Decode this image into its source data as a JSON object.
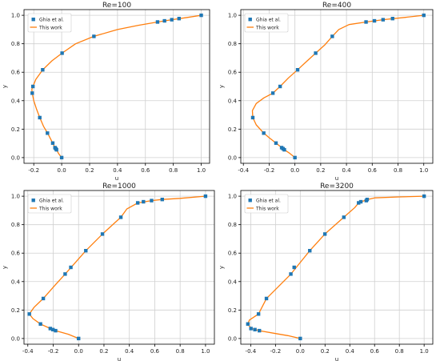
{
  "colors": {
    "ghia_marker": "#1f77b4",
    "this_work_line": "#ff7f0e",
    "grid": "#d0d0d0",
    "axes": "#000000"
  },
  "chart_data": [
    {
      "type": "line",
      "title": "Re=100",
      "xlabel": "u",
      "ylabel": "y",
      "xlim": [
        -0.27,
        1.06
      ],
      "ylim": [
        -0.04,
        1.04
      ],
      "xticks": [
        -0.2,
        0.0,
        0.2,
        0.4,
        0.6,
        0.8,
        1.0
      ],
      "yticks": [
        0.0,
        0.2,
        0.4,
        0.6,
        0.8,
        1.0
      ],
      "grid": true,
      "legend_position": "top-left",
      "series": [
        {
          "name": "Ghia et al.",
          "kind": "marker",
          "x": [
            0.0,
            -0.037,
            -0.042,
            -0.048,
            -0.064,
            -0.102,
            -0.157,
            -0.211,
            -0.206,
            -0.136,
            0.003,
            0.231,
            0.687,
            0.737,
            0.789,
            0.841,
            1.0
          ],
          "y": [
            0.0,
            0.055,
            0.0625,
            0.07,
            0.102,
            0.172,
            0.281,
            0.453,
            0.5,
            0.617,
            0.734,
            0.852,
            0.953,
            0.961,
            0.969,
            0.977,
            1.0
          ]
        },
        {
          "name": "This work",
          "kind": "line",
          "x": [
            0.0,
            -0.02,
            -0.037,
            -0.048,
            -0.064,
            -0.1,
            -0.13,
            -0.157,
            -0.18,
            -0.2,
            -0.211,
            -0.214,
            -0.206,
            -0.185,
            -0.136,
            -0.07,
            0.003,
            0.1,
            0.231,
            0.4,
            0.55,
            0.687,
            0.789,
            0.9,
            1.0
          ],
          "y": [
            0.0,
            0.025,
            0.055,
            0.07,
            0.102,
            0.17,
            0.22,
            0.281,
            0.34,
            0.4,
            0.453,
            0.48,
            0.5,
            0.55,
            0.617,
            0.68,
            0.734,
            0.8,
            0.852,
            0.9,
            0.93,
            0.953,
            0.969,
            0.985,
            1.0
          ]
        }
      ]
    },
    {
      "type": "line",
      "title": "Re=400",
      "xlabel": "u",
      "ylabel": "y",
      "xlim": [
        -0.42,
        1.07
      ],
      "ylim": [
        -0.04,
        1.04
      ],
      "xticks": [
        -0.4,
        -0.2,
        0.0,
        0.2,
        0.4,
        0.6,
        0.8,
        1.0
      ],
      "yticks": [
        0.0,
        0.2,
        0.4,
        0.6,
        0.8,
        1.0
      ],
      "grid": true,
      "legend_position": "top-left",
      "series": [
        {
          "name": "Ghia et al.",
          "kind": "marker",
          "x": [
            0.0,
            -0.082,
            -0.092,
            -0.103,
            -0.147,
            -0.242,
            -0.327,
            -0.171,
            -0.115,
            0.021,
            0.161,
            0.29,
            0.552,
            0.617,
            0.684,
            0.758,
            1.0
          ],
          "y": [
            0.0,
            0.055,
            0.0625,
            0.07,
            0.102,
            0.172,
            0.281,
            0.453,
            0.5,
            0.617,
            0.734,
            0.852,
            0.953,
            0.961,
            0.969,
            0.977,
            1.0
          ]
        },
        {
          "name": "This work",
          "kind": "line",
          "x": [
            0.0,
            -0.04,
            -0.082,
            -0.103,
            -0.147,
            -0.2,
            -0.242,
            -0.3,
            -0.327,
            -0.33,
            -0.3,
            -0.24,
            -0.171,
            -0.115,
            -0.05,
            0.021,
            0.09,
            0.161,
            0.23,
            0.29,
            0.34,
            0.42,
            0.552,
            0.684,
            0.85,
            1.0
          ],
          "y": [
            0.0,
            0.03,
            0.055,
            0.07,
            0.102,
            0.14,
            0.172,
            0.23,
            0.281,
            0.33,
            0.38,
            0.42,
            0.453,
            0.5,
            0.56,
            0.617,
            0.675,
            0.734,
            0.79,
            0.852,
            0.9,
            0.935,
            0.953,
            0.969,
            0.985,
            1.0
          ]
        }
      ]
    },
    {
      "type": "line",
      "title": "Re=1000",
      "xlabel": "u",
      "ylabel": "y",
      "xlim": [
        -0.43,
        1.07
      ],
      "ylim": [
        -0.04,
        1.04
      ],
      "xticks": [
        -0.4,
        -0.2,
        0.0,
        0.2,
        0.4,
        0.6,
        0.8,
        1.0
      ],
      "yticks": [
        0.0,
        0.2,
        0.4,
        0.6,
        0.8,
        1.0
      ],
      "grid": true,
      "legend_position": "top-left",
      "series": [
        {
          "name": "Ghia et al.",
          "kind": "marker",
          "x": [
            0.0,
            -0.181,
            -0.202,
            -0.223,
            -0.3,
            -0.388,
            -0.278,
            -0.106,
            -0.061,
            0.057,
            0.188,
            0.333,
            0.466,
            0.511,
            0.575,
            0.659,
            1.0
          ],
          "y": [
            0.0,
            0.055,
            0.0625,
            0.07,
            0.102,
            0.172,
            0.281,
            0.453,
            0.5,
            0.617,
            0.734,
            0.852,
            0.953,
            0.961,
            0.969,
            0.977,
            1.0
          ]
        },
        {
          "name": "This work",
          "kind": "line",
          "x": [
            0.0,
            -0.08,
            -0.181,
            -0.223,
            -0.3,
            -0.36,
            -0.388,
            -0.35,
            -0.278,
            -0.19,
            -0.106,
            0.057,
            0.188,
            0.333,
            0.38,
            0.466,
            0.575,
            0.659,
            0.8,
            1.0
          ],
          "y": [
            0.0,
            0.03,
            0.055,
            0.07,
            0.102,
            0.14,
            0.172,
            0.22,
            0.281,
            0.37,
            0.453,
            0.617,
            0.734,
            0.852,
            0.91,
            0.953,
            0.969,
            0.977,
            0.985,
            1.0
          ]
        }
      ]
    },
    {
      "type": "line",
      "title": "Re=3200",
      "xlabel": "u",
      "ylabel": "y",
      "xlim": [
        -0.48,
        1.07
      ],
      "ylim": [
        -0.04,
        1.04
      ],
      "xticks": [
        -0.4,
        -0.2,
        0.0,
        0.2,
        0.4,
        0.6,
        0.8,
        1.0
      ],
      "yticks": [
        0.0,
        0.2,
        0.4,
        0.6,
        0.8,
        1.0
      ],
      "grid": true,
      "legend_position": "top-left",
      "series": [
        {
          "name": "Ghia et al.",
          "kind": "marker",
          "x": [
            0.0,
            -0.33,
            -0.366,
            -0.398,
            -0.423,
            -0.337,
            -0.273,
            -0.076,
            -0.049,
            0.077,
            0.199,
            0.352,
            0.471,
            0.489,
            0.533,
            0.54,
            1.0
          ],
          "y": [
            0.0,
            0.055,
            0.0625,
            0.07,
            0.102,
            0.172,
            0.281,
            0.453,
            0.5,
            0.617,
            0.734,
            0.852,
            0.953,
            0.961,
            0.969,
            0.977,
            1.0
          ]
        },
        {
          "name": "This work",
          "kind": "line",
          "x": [
            0.0,
            -0.1,
            -0.2,
            -0.33,
            -0.398,
            -0.423,
            -0.41,
            -0.337,
            -0.273,
            -0.17,
            -0.076,
            0.077,
            0.199,
            0.352,
            0.44,
            0.471,
            0.533,
            0.6,
            0.8,
            1.0
          ],
          "y": [
            0.0,
            0.02,
            0.035,
            0.055,
            0.07,
            0.102,
            0.13,
            0.172,
            0.281,
            0.37,
            0.453,
            0.617,
            0.734,
            0.852,
            0.92,
            0.953,
            0.975,
            0.988,
            0.995,
            1.0
          ]
        }
      ]
    }
  ]
}
